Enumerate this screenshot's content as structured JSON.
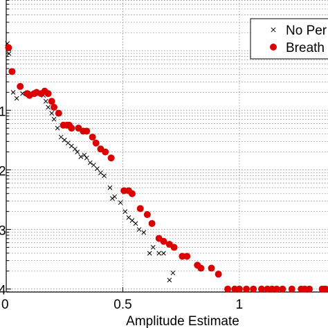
{
  "chart_data": {
    "type": "scatter",
    "xlabel": "Amplitude Estimate",
    "ylabel": "",
    "xlim": [
      0,
      1.38
    ],
    "ylim_log10": [
      -4.05,
      0.85
    ],
    "y_scale": "log",
    "grid": true,
    "x_ticks": [
      {
        "value": 0,
        "label": "0"
      },
      {
        "value": 0.5,
        "label": "0.5"
      },
      {
        "value": 1,
        "label": "1"
      }
    ],
    "y_tick_marks": [
      {
        "value_log10": -1,
        "label": "1"
      },
      {
        "value_log10": -2,
        "label": "2"
      },
      {
        "value_log10": -3,
        "label": "3"
      },
      {
        "value_log10": -4,
        "label": "4"
      }
    ],
    "legend": {
      "placement": "top-right",
      "entries": [
        {
          "label": "No Per",
          "marker": "x",
          "color": "#000000"
        },
        {
          "label": "Breath",
          "marker": "dot",
          "color": "#dd0000"
        }
      ]
    },
    "series": [
      {
        "name": "No Per",
        "marker": "x",
        "color": "#000000",
        "x": [
          0.005,
          0.012,
          0.03,
          0.045,
          0.07,
          0.085,
          0.095,
          0.11,
          0.125,
          0.145,
          0.16,
          0.17,
          0.18,
          0.195,
          0.205,
          0.22,
          0.235,
          0.25,
          0.265,
          0.28,
          0.295,
          0.305,
          0.32,
          0.335,
          0.345,
          0.36,
          0.375,
          0.39,
          0.405,
          0.42,
          0.445,
          0.455,
          0.465,
          0.49,
          0.51,
          0.525,
          0.54,
          0.555,
          0.57,
          0.59,
          0.615,
          0.63,
          0.655,
          0.675,
          0.7,
          0.715
        ],
        "y_log10": [
          0.12,
          -0.05,
          -0.7,
          -0.8,
          -0.72,
          -0.72,
          -0.72,
          -0.72,
          -0.72,
          -0.72,
          -0.75,
          -0.85,
          -0.95,
          -1.05,
          -1.15,
          -1.3,
          -1.45,
          -1.5,
          -1.55,
          -1.6,
          -1.65,
          -1.7,
          -1.78,
          -1.75,
          -1.8,
          -1.88,
          -1.92,
          -1.98,
          -2.05,
          -2.1,
          -2.3,
          -2.48,
          -2.45,
          -2.55,
          -2.7,
          -2.8,
          -2.85,
          -2.9,
          -3.0,
          -3.05,
          -3.4,
          -3.3,
          -3.4,
          -3.4,
          -3.85,
          -3.73
        ]
      },
      {
        "name": "Breath",
        "marker": "dot",
        "color": "#dd0000",
        "x": [
          0.01,
          0.025,
          0.06,
          0.09,
          0.1,
          0.12,
          0.13,
          0.15,
          0.165,
          0.18,
          0.195,
          0.205,
          0.225,
          0.245,
          0.26,
          0.27,
          0.28,
          0.31,
          0.33,
          0.345,
          0.37,
          0.385,
          0.405,
          0.425,
          0.45,
          0.505,
          0.525,
          0.54,
          0.575,
          0.605,
          0.625,
          0.655,
          0.675,
          0.7,
          0.72,
          0.755,
          0.775,
          0.82,
          0.835,
          0.88,
          0.91,
          0.95,
          0.98,
          1.0,
          1.03,
          1.06,
          1.095,
          1.12,
          1.14,
          1.16,
          1.185,
          1.225,
          1.265,
          1.28,
          1.3,
          1.355,
          1.365,
          1.37
        ],
        "y_log10": [
          0.05,
          -0.35,
          -0.6,
          -0.72,
          -0.75,
          -0.72,
          -0.7,
          -0.72,
          -0.68,
          -0.72,
          -0.85,
          -0.95,
          -1.05,
          -1.25,
          -1.25,
          -1.25,
          -1.3,
          -1.3,
          -1.35,
          -1.35,
          -1.45,
          -1.55,
          -1.65,
          -1.7,
          -1.8,
          -2.35,
          -2.35,
          -2.4,
          -2.65,
          -2.75,
          -2.9,
          -3.15,
          -3.2,
          -3.25,
          -3.3,
          -3.45,
          -3.45,
          -3.6,
          -3.65,
          -3.65,
          -3.75,
          -4.0,
          -4.0,
          -4.0,
          -4.0,
          -4.0,
          -4.0,
          -4.0,
          -4.0,
          -4.0,
          -4.0,
          -4.0,
          -4.0,
          -4.0,
          -4.0,
          -4.0,
          -4.0,
          -4.0
        ]
      }
    ]
  }
}
